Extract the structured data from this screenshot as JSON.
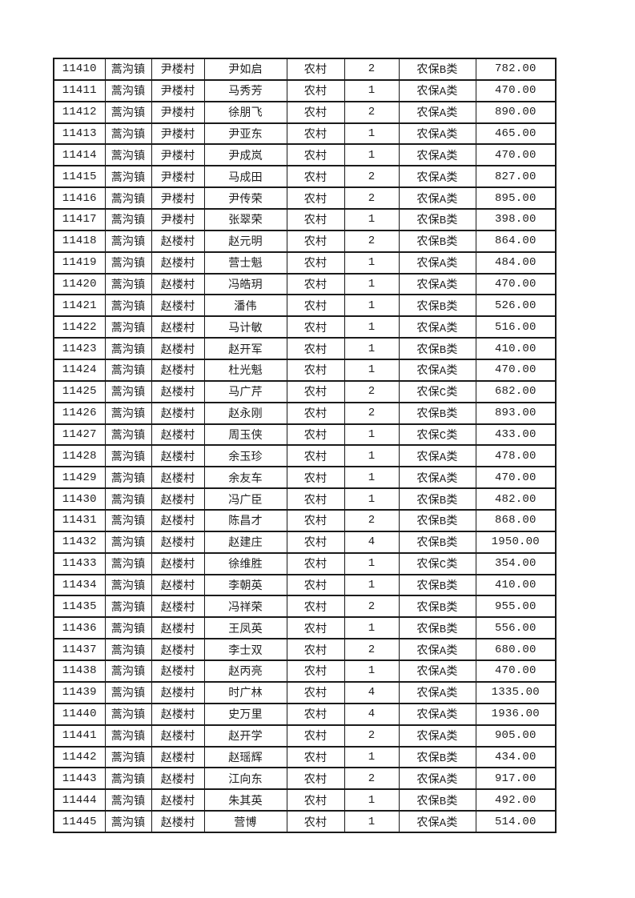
{
  "page": {
    "background_color": "#ffffff",
    "text_color": "#1f1f1f",
    "border_color": "#1a1a1a"
  },
  "table": {
    "column_names": [
      "record-id",
      "town",
      "village",
      "person-name",
      "residence-type",
      "person-count",
      "insurance-category",
      "amount"
    ],
    "rows": [
      [
        "11410",
        "蒿沟镇",
        "尹楼村",
        "尹如启",
        "农村",
        "2",
        "农保B类",
        "782.00"
      ],
      [
        "11411",
        "蒿沟镇",
        "尹楼村",
        "马秀芳",
        "农村",
        "1",
        "农保A类",
        "470.00"
      ],
      [
        "11412",
        "蒿沟镇",
        "尹楼村",
        "徐朋飞",
        "农村",
        "2",
        "农保A类",
        "890.00"
      ],
      [
        "11413",
        "蒿沟镇",
        "尹楼村",
        "尹亚东",
        "农村",
        "1",
        "农保A类",
        "465.00"
      ],
      [
        "11414",
        "蒿沟镇",
        "尹楼村",
        "尹成岚",
        "农村",
        "1",
        "农保A类",
        "470.00"
      ],
      [
        "11415",
        "蒿沟镇",
        "尹楼村",
        "马成田",
        "农村",
        "2",
        "农保A类",
        "827.00"
      ],
      [
        "11416",
        "蒿沟镇",
        "尹楼村",
        "尹传荣",
        "农村",
        "2",
        "农保A类",
        "895.00"
      ],
      [
        "11417",
        "蒿沟镇",
        "尹楼村",
        "张翠荣",
        "农村",
        "1",
        "农保B类",
        "398.00"
      ],
      [
        "11418",
        "蒿沟镇",
        "赵楼村",
        "赵元明",
        "农村",
        "2",
        "农保B类",
        "864.00"
      ],
      [
        "11419",
        "蒿沟镇",
        "赵楼村",
        "营士魁",
        "农村",
        "1",
        "农保A类",
        "484.00"
      ],
      [
        "11420",
        "蒿沟镇",
        "赵楼村",
        "冯皓玥",
        "农村",
        "1",
        "农保A类",
        "470.00"
      ],
      [
        "11421",
        "蒿沟镇",
        "赵楼村",
        "潘伟",
        "农村",
        "1",
        "农保B类",
        "526.00"
      ],
      [
        "11422",
        "蒿沟镇",
        "赵楼村",
        "马计敏",
        "农村",
        "1",
        "农保A类",
        "516.00"
      ],
      [
        "11423",
        "蒿沟镇",
        "赵楼村",
        "赵开军",
        "农村",
        "1",
        "农保B类",
        "410.00"
      ],
      [
        "11424",
        "蒿沟镇",
        "赵楼村",
        "杜光魁",
        "农村",
        "1",
        "农保A类",
        "470.00"
      ],
      [
        "11425",
        "蒿沟镇",
        "赵楼村",
        "马广芹",
        "农村",
        "2",
        "农保C类",
        "682.00"
      ],
      [
        "11426",
        "蒿沟镇",
        "赵楼村",
        "赵永刚",
        "农村",
        "2",
        "农保B类",
        "893.00"
      ],
      [
        "11427",
        "蒿沟镇",
        "赵楼村",
        "周玉侠",
        "农村",
        "1",
        "农保C类",
        "433.00"
      ],
      [
        "11428",
        "蒿沟镇",
        "赵楼村",
        "余玉珍",
        "农村",
        "1",
        "农保A类",
        "478.00"
      ],
      [
        "11429",
        "蒿沟镇",
        "赵楼村",
        "余友车",
        "农村",
        "1",
        "农保A类",
        "470.00"
      ],
      [
        "11430",
        "蒿沟镇",
        "赵楼村",
        "冯广臣",
        "农村",
        "1",
        "农保B类",
        "482.00"
      ],
      [
        "11431",
        "蒿沟镇",
        "赵楼村",
        "陈昌才",
        "农村",
        "2",
        "农保B类",
        "868.00"
      ],
      [
        "11432",
        "蒿沟镇",
        "赵楼村",
        "赵建庄",
        "农村",
        "4",
        "农保B类",
        "1950.00"
      ],
      [
        "11433",
        "蒿沟镇",
        "赵楼村",
        "徐维胜",
        "农村",
        "1",
        "农保C类",
        "354.00"
      ],
      [
        "11434",
        "蒿沟镇",
        "赵楼村",
        "李朝英",
        "农村",
        "1",
        "农保B类",
        "410.00"
      ],
      [
        "11435",
        "蒿沟镇",
        "赵楼村",
        "冯祥荣",
        "农村",
        "2",
        "农保B类",
        "955.00"
      ],
      [
        "11436",
        "蒿沟镇",
        "赵楼村",
        "王凤英",
        "农村",
        "1",
        "农保B类",
        "556.00"
      ],
      [
        "11437",
        "蒿沟镇",
        "赵楼村",
        "李士双",
        "农村",
        "2",
        "农保A类",
        "680.00"
      ],
      [
        "11438",
        "蒿沟镇",
        "赵楼村",
        "赵丙亮",
        "农村",
        "1",
        "农保A类",
        "470.00"
      ],
      [
        "11439",
        "蒿沟镇",
        "赵楼村",
        "时广林",
        "农村",
        "4",
        "农保A类",
        "1335.00"
      ],
      [
        "11440",
        "蒿沟镇",
        "赵楼村",
        "史万里",
        "农村",
        "4",
        "农保A类",
        "1936.00"
      ],
      [
        "11441",
        "蒿沟镇",
        "赵楼村",
        "赵开学",
        "农村",
        "2",
        "农保A类",
        "905.00"
      ],
      [
        "11442",
        "蒿沟镇",
        "赵楼村",
        "赵瑶辉",
        "农村",
        "1",
        "农保B类",
        "434.00"
      ],
      [
        "11443",
        "蒿沟镇",
        "赵楼村",
        "江向东",
        "农村",
        "2",
        "农保A类",
        "917.00"
      ],
      [
        "11444",
        "蒿沟镇",
        "赵楼村",
        "朱其英",
        "农村",
        "1",
        "农保B类",
        "492.00"
      ],
      [
        "11445",
        "蒿沟镇",
        "赵楼村",
        "营博",
        "农村",
        "1",
        "农保A类",
        "514.00"
      ]
    ]
  }
}
